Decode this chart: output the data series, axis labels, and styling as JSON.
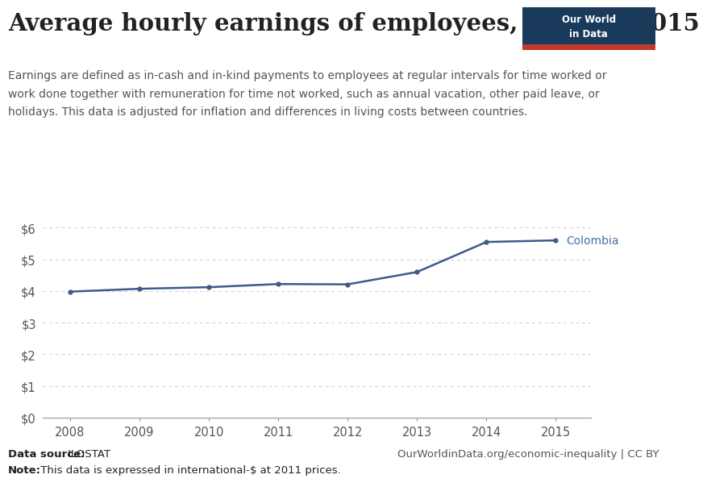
{
  "title": "Average hourly earnings of employees, 2008 to 2015",
  "subtitle_line1": "Earnings are defined as in-cash and in-kind payments to employees at regular intervals for time worked or",
  "subtitle_line2": "work done together with remuneration for time not worked, such as annual vacation, other paid leave, or",
  "subtitle_line3": "holidays. This data is adjusted for inflation and differences in living costs between countries.",
  "years": [
    2008,
    2009,
    2010,
    2011,
    2012,
    2013,
    2014,
    2015
  ],
  "values": [
    3.98,
    4.07,
    4.12,
    4.22,
    4.21,
    4.6,
    5.55,
    5.6
  ],
  "line_color": "#3d5a8a",
  "label": "Colombia",
  "label_color": "#4472a8",
  "ylim": [
    0,
    6.5
  ],
  "yticks": [
    0,
    1,
    2,
    3,
    4,
    5,
    6
  ],
  "ytick_labels": [
    "$0",
    "$1",
    "$2",
    "$3",
    "$4",
    "$5",
    "$6"
  ],
  "xlim": [
    2007.6,
    2015.5
  ],
  "xticks": [
    2008,
    2009,
    2010,
    2011,
    2012,
    2013,
    2014,
    2015
  ],
  "background_color": "#ffffff",
  "grid_color": "#cccccc",
  "logo_bg": "#1a3a5c",
  "logo_red": "#c0392b",
  "title_fontsize": 21,
  "subtitle_fontsize": 10,
  "tick_fontsize": 10.5,
  "footer_fontsize": 9.5
}
